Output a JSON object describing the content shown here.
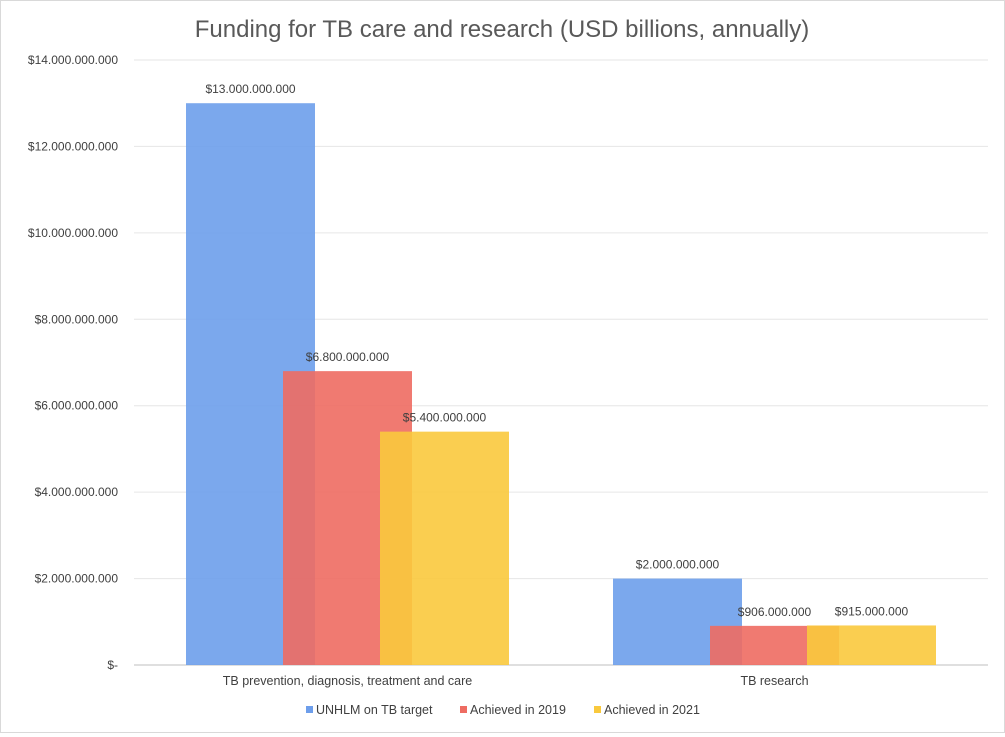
{
  "chart_data": {
    "type": "bar",
    "title": "Funding for TB care and research (USD billions, annually)",
    "categories": [
      "TB prevention, diagnosis, treatment and care",
      "TB research"
    ],
    "series": [
      {
        "name": "UNHLM on TB target",
        "color": "#6d9eeb",
        "values": [
          13000000000,
          2000000000
        ],
        "labels": [
          "$13.000.000.000",
          "$2.000.000.000"
        ]
      },
      {
        "name": "Achieved in 2019",
        "color": "#ee6c62",
        "values": [
          6800000000,
          906000000
        ],
        "labels": [
          "$6.800.000.000",
          "$906.000.000"
        ]
      },
      {
        "name": "Achieved in 2021",
        "color": "#f9c93d",
        "values": [
          5400000000,
          915000000
        ],
        "labels": [
          "$5.400.000.000",
          "$915.000.000"
        ]
      }
    ],
    "ylim": [
      0,
      14000000000
    ],
    "yticks": [
      0,
      2000000000,
      4000000000,
      6000000000,
      8000000000,
      10000000000,
      12000000000,
      14000000000
    ],
    "ytick_labels": [
      "$-",
      "$2.000.000.000",
      "$4.000.000.000",
      "$6.000.000.000",
      "$8.000.000.000",
      "$10.000.000.000",
      "$12.000.000.000",
      "$14.000.000.000"
    ],
    "legend_position": "bottom",
    "grid": true
  }
}
